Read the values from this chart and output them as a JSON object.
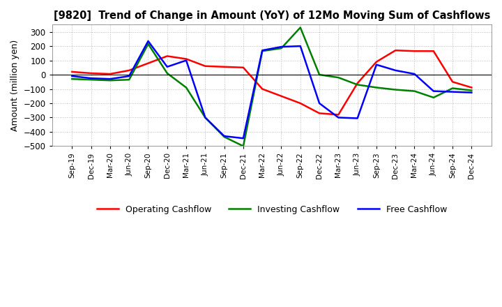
{
  "title": "[9820]  Trend of Change in Amount (YoY) of 12Mo Moving Sum of Cashflows",
  "ylabel": "Amount (million yen)",
  "x_labels": [
    "Sep-19",
    "Dec-19",
    "Mar-20",
    "Jun-20",
    "Sep-20",
    "Dec-20",
    "Mar-21",
    "Jun-21",
    "Sep-21",
    "Dec-21",
    "Mar-22",
    "Jun-22",
    "Sep-22",
    "Dec-22",
    "Mar-23",
    "Jun-23",
    "Sep-23",
    "Dec-23",
    "Mar-24",
    "Jun-24",
    "Sep-24",
    "Dec-24"
  ],
  "operating": [
    20,
    10,
    5,
    30,
    80,
    130,
    110,
    60,
    55,
    50,
    -100,
    -150,
    -200,
    -270,
    -280,
    -60,
    90,
    170,
    165,
    165,
    -50,
    -90
  ],
  "investing": [
    -30,
    -35,
    -40,
    -35,
    215,
    10,
    -90,
    -300,
    -435,
    -500,
    165,
    185,
    330,
    0,
    -20,
    -70,
    -90,
    -105,
    -115,
    -160,
    -95,
    -110
  ],
  "free": [
    -10,
    -25,
    -30,
    -10,
    235,
    55,
    100,
    -300,
    -430,
    -445,
    170,
    195,
    200,
    -200,
    -300,
    -305,
    70,
    30,
    5,
    -115,
    -120,
    -125
  ],
  "operating_color": "#ff0000",
  "investing_color": "#008000",
  "free_color": "#0000ff",
  "ylim": [
    -500,
    350
  ],
  "yticks": [
    -500,
    -400,
    -300,
    -200,
    -100,
    0,
    100,
    200,
    300
  ],
  "plot_bg_color": "#ffffff",
  "fig_bg_color": "#ffffff",
  "grid_color": "#bbbbbb",
  "linewidth": 1.8
}
